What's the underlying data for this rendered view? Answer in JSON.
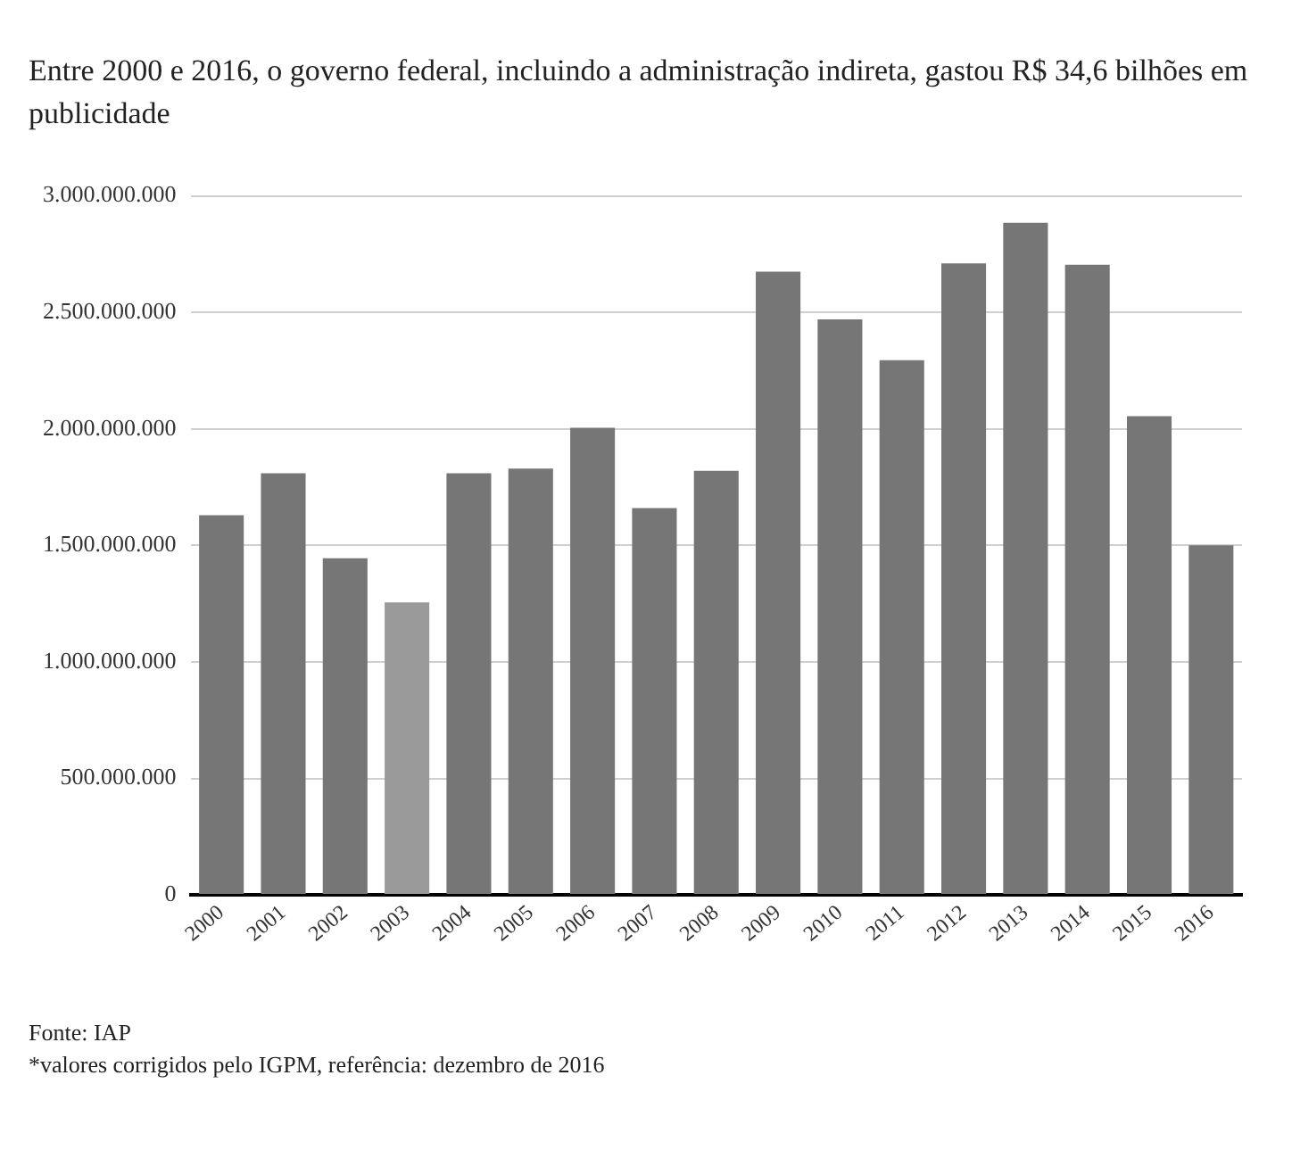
{
  "chart_data": {
    "type": "bar",
    "title": "Entre 2000 e 2016, o governo federal, incluindo a administração indireta, gastou R$ 34,6 bilhões em publicidade",
    "categories": [
      "2000",
      "2001",
      "2002",
      "2003",
      "2004",
      "2005",
      "2006",
      "2007",
      "2008",
      "2009",
      "2010",
      "2011",
      "2012",
      "2013",
      "2014",
      "2015",
      "2016"
    ],
    "values": [
      1630000000,
      1810000000,
      1445000000,
      1255000000,
      1810000000,
      1830000000,
      2005000000,
      1660000000,
      1820000000,
      2675000000,
      2470000000,
      2295000000,
      2710000000,
      2885000000,
      2705000000,
      2055000000,
      1500000000
    ],
    "colors": [
      "#767676",
      "#767676",
      "#767676",
      "#9a9a9a",
      "#767676",
      "#767676",
      "#767676",
      "#767676",
      "#767676",
      "#767676",
      "#767676",
      "#767676",
      "#767676",
      "#767676",
      "#767676",
      "#767676",
      "#767676"
    ],
    "ylim": [
      0,
      3000000000
    ],
    "yticks": [
      {
        "value": 0,
        "label": "0"
      },
      {
        "value": 500000000,
        "label": "500.000.000"
      },
      {
        "value": 1000000000,
        "label": "1.000.000.000"
      },
      {
        "value": 1500000000,
        "label": "1.500.000.000"
      },
      {
        "value": 2000000000,
        "label": "2.000.000.000"
      },
      {
        "value": 2500000000,
        "label": "2.500.000.000"
      },
      {
        "value": 3000000000,
        "label": "3.000.000.000"
      }
    ],
    "grid": "y",
    "annotations": [
      "Fonte: IAP",
      "*valores corrigidos pelo IGPM, referência: dezembro de 2016"
    ]
  }
}
